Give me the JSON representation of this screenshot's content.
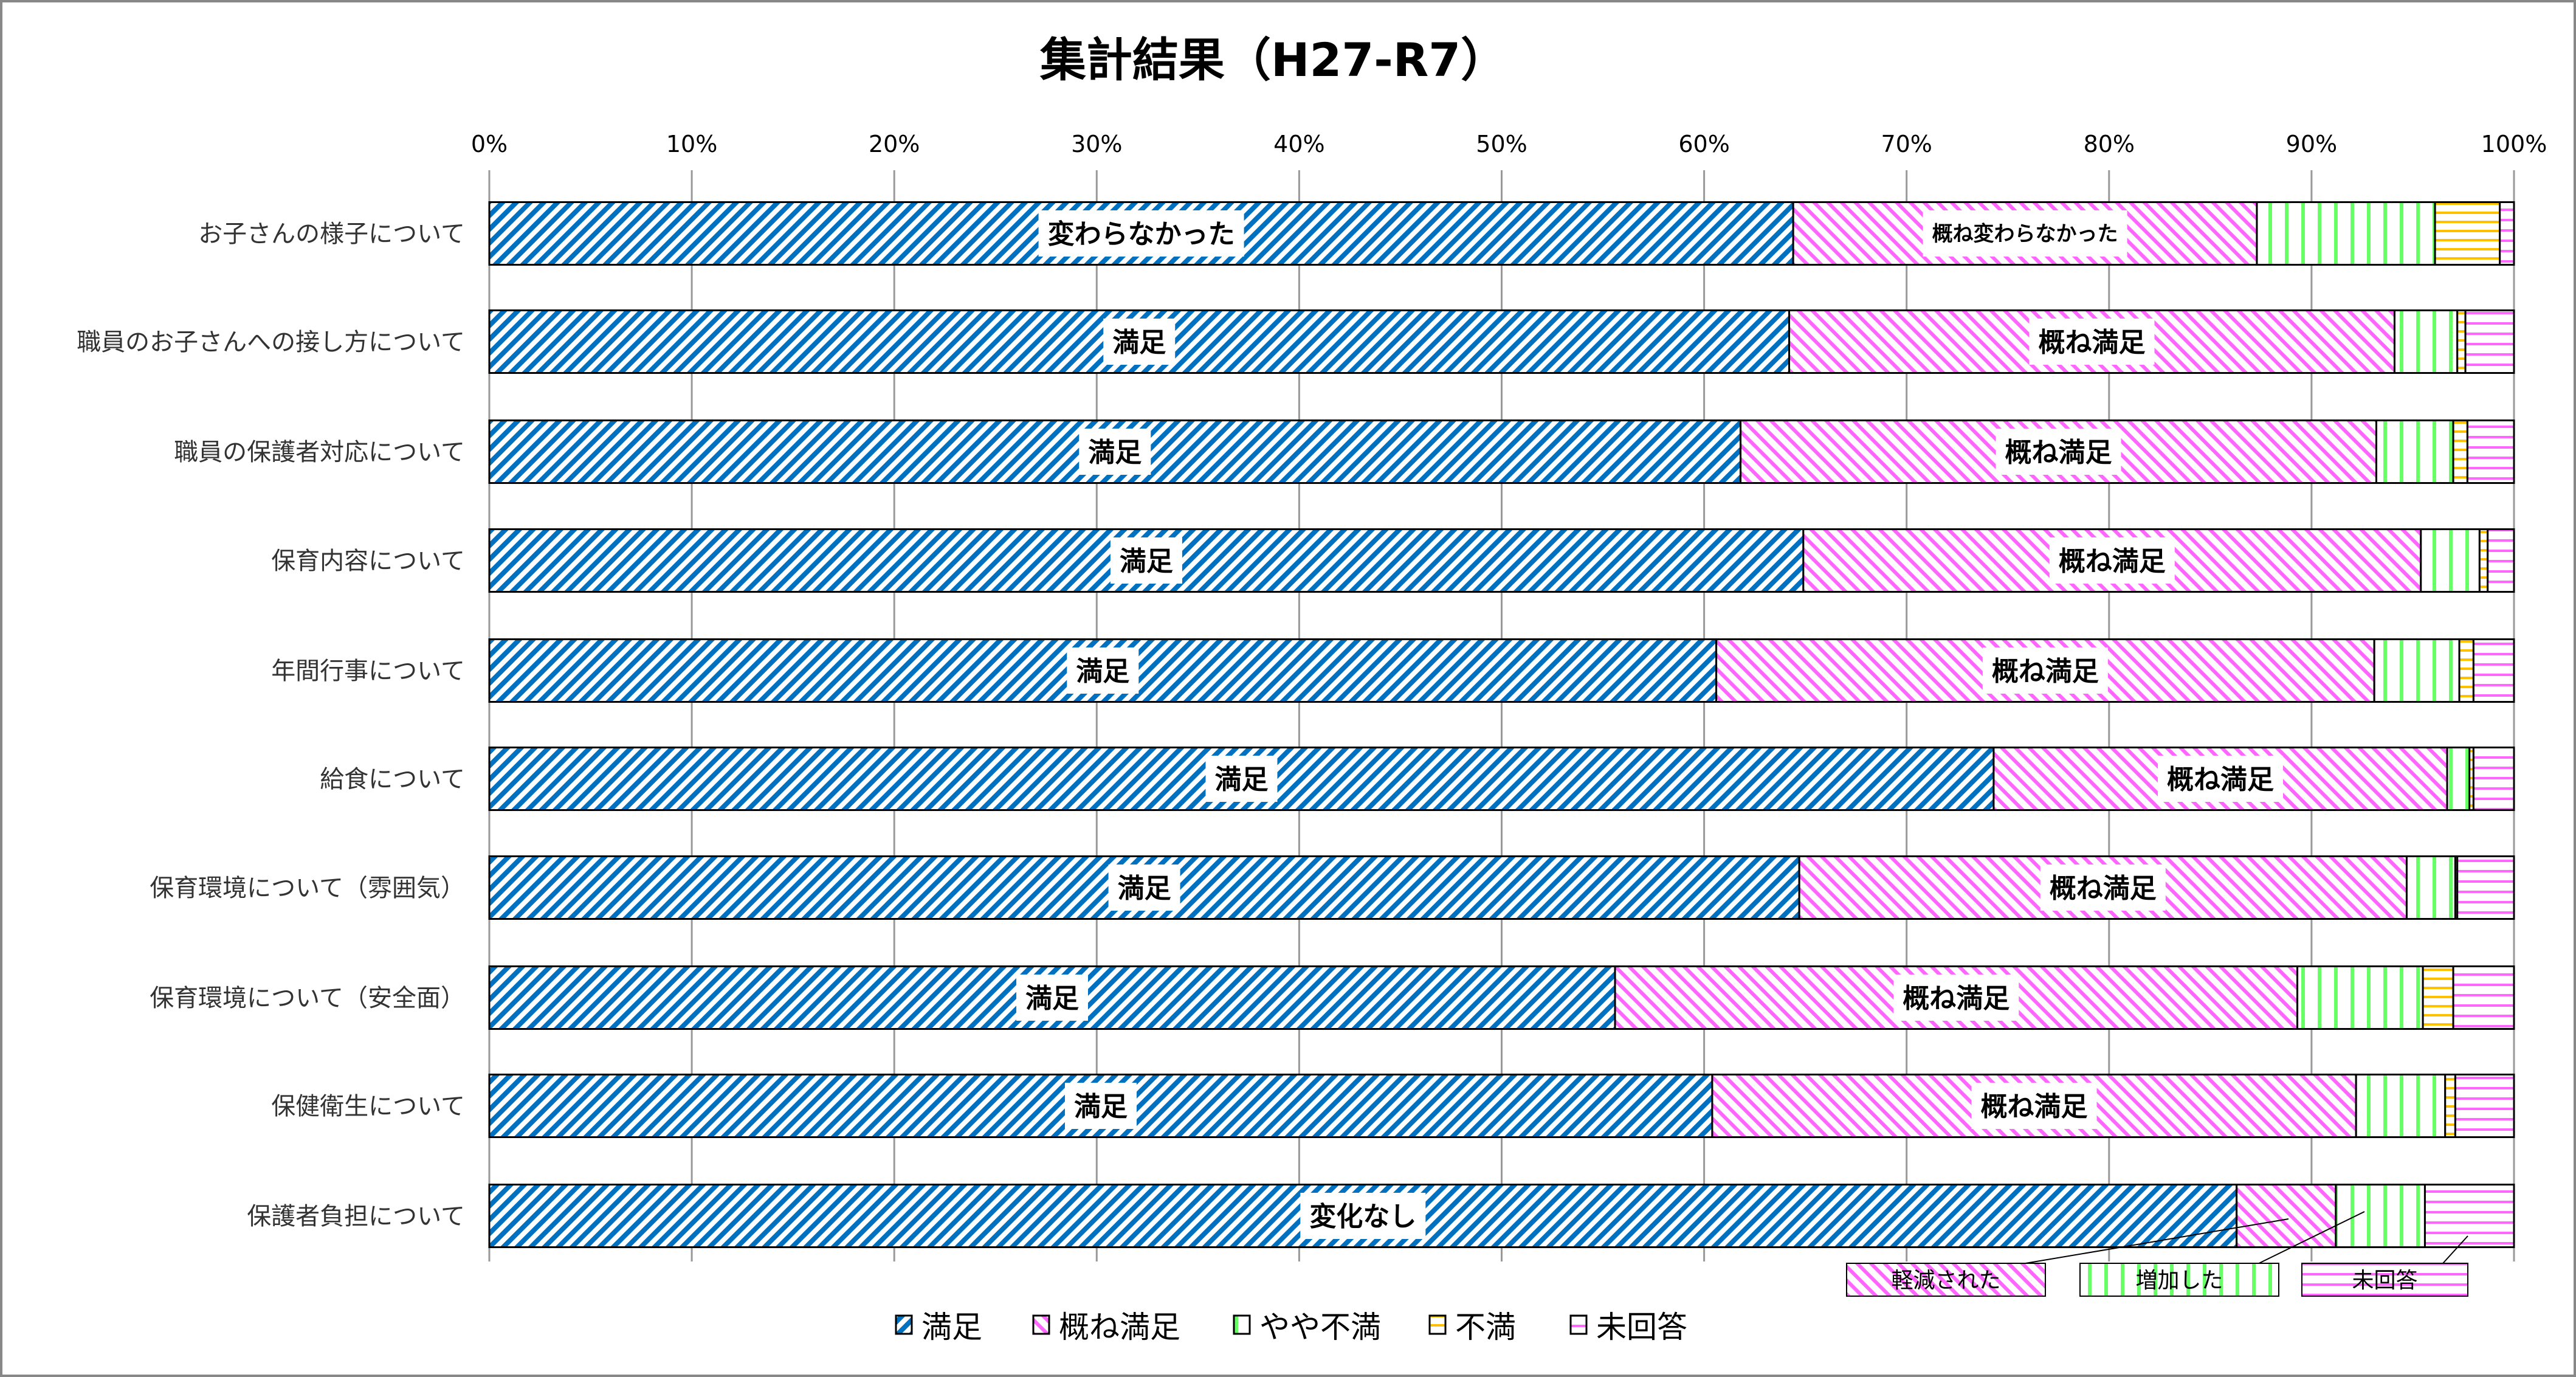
{
  "chart_data": {
    "type": "bar",
    "orientation": "horizontal",
    "stacked": "100%",
    "title": "集計結果（H27-R7）",
    "xlim": [
      0,
      100
    ],
    "x_ticks": [
      "0%",
      "10%",
      "20%",
      "30%",
      "40%",
      "50%",
      "60%",
      "70%",
      "80%",
      "90%",
      "100%"
    ],
    "grid": true,
    "legend_position": "bottom",
    "categories": [
      "お子さんの様子について",
      "職員のお子さんへの接し方について",
      "職員の保護者対応について",
      "保育内容について",
      "年間行事について",
      "給食について",
      "保育環境について（雰囲気）",
      "保育環境について（安全面）",
      "保健衛生について",
      "保護者負担について"
    ],
    "series": [
      {
        "name": "満足",
        "color": "#0070c0",
        "pattern": "diagonal-up",
        "values": [
          64.4,
          64.2,
          61.8,
          64.9,
          60.6,
          74.3,
          64.7,
          55.6,
          60.4,
          86.3
        ]
      },
      {
        "name": "概ね満足",
        "color": "#ff66ff",
        "pattern": "diagonal-down",
        "values": [
          22.9,
          29.9,
          31.4,
          30.5,
          32.5,
          22.4,
          30.0,
          33.7,
          31.8,
          4.9
        ]
      },
      {
        "name": "やや不満",
        "color": "#66ff66",
        "pattern": "vertical",
        "values": [
          8.8,
          3.1,
          3.8,
          2.9,
          4.2,
          1.1,
          2.4,
          6.2,
          4.4,
          4.4
        ]
      },
      {
        "name": "不満",
        "color": "#ffc000",
        "pattern": "horizontal",
        "values": [
          3.2,
          0.4,
          0.7,
          0.4,
          0.7,
          0.2,
          0.1,
          1.5,
          0.5,
          0
        ]
      },
      {
        "name": "未回答",
        "color": "#ff66ff",
        "pattern": "horizontal",
        "values": [
          0.7,
          2.4,
          2.3,
          1.3,
          2.0,
          2.0,
          2.8,
          3.0,
          2.9,
          4.4
        ]
      }
    ],
    "data_labels": [
      [
        "変わらなかった",
        "概ね変わらなかった"
      ],
      [
        "満足",
        "概ね満足"
      ],
      [
        "満足",
        "概ね満足"
      ],
      [
        "満足",
        "概ね満足"
      ],
      [
        "満足",
        "概ね満足"
      ],
      [
        "満足",
        "概ね満足"
      ],
      [
        "満足",
        "概ね満足"
      ],
      [
        "満足",
        "概ね満足"
      ],
      [
        "満足",
        "概ね満足"
      ],
      [
        "変化なし"
      ]
    ],
    "callouts": [
      "軽減された",
      "増加した",
      "未回答"
    ]
  }
}
